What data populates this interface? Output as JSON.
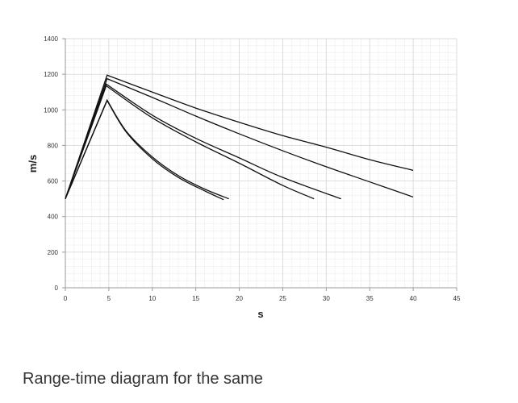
{
  "chart_data": {
    "type": "line",
    "xlabel": "s",
    "ylabel": "m/s",
    "xlim": [
      0,
      45
    ],
    "ylim": [
      0,
      1400
    ],
    "x_ticks": [
      0,
      5,
      10,
      15,
      20,
      25,
      30,
      35,
      40,
      45
    ],
    "y_ticks": [
      0,
      200,
      400,
      600,
      800,
      1000,
      1200,
      1400
    ],
    "x_tick_labels": [
      "0",
      "5",
      "10",
      "15",
      "20",
      "25",
      "30",
      "35",
      "40",
      "45"
    ],
    "y_tick_labels": [
      "0",
      "200",
      "400",
      "600",
      "800",
      "1000",
      "1200",
      "1400"
    ],
    "grid": true,
    "minor_grid": true,
    "line_color": "#111111",
    "series": [
      {
        "x": [
          0,
          4.8,
          10,
          15,
          20,
          25,
          30,
          35,
          40
        ],
        "y": [
          500,
          1195,
          1100,
          1010,
          930,
          855,
          790,
          720,
          660
        ]
      },
      {
        "x": [
          0,
          4.8,
          10,
          15,
          20,
          25,
          30,
          35,
          40
        ],
        "y": [
          500,
          1175,
          1070,
          965,
          865,
          770,
          680,
          595,
          510
        ]
      },
      {
        "x": [
          0,
          4.7,
          10,
          15,
          20,
          25,
          31.7
        ],
        "y": [
          500,
          1145,
          970,
          840,
          730,
          620,
          500
        ]
      },
      {
        "x": [
          0,
          4.7,
          10,
          15,
          20,
          25,
          28.6
        ],
        "y": [
          500,
          1135,
          955,
          820,
          700,
          575,
          500
        ]
      },
      {
        "x": [
          0,
          4.8,
          7,
          10,
          13,
          16,
          18.8
        ],
        "y": [
          500,
          1055,
          880,
          735,
          630,
          555,
          500
        ]
      },
      {
        "x": [
          0,
          4.8,
          7,
          10,
          13,
          16,
          18.2
        ],
        "y": [
          500,
          1052,
          875,
          725,
          620,
          545,
          495
        ]
      }
    ]
  },
  "caption": "Range-time diagram for the same"
}
